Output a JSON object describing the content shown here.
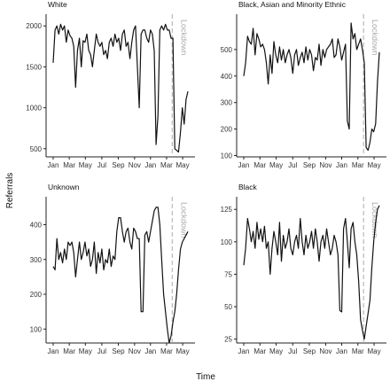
{
  "figure": {
    "ylabel": "Referrals",
    "xlabel": "Time"
  },
  "chart_data": [
    {
      "type": "line",
      "title": "White",
      "x_ticks": [
        "Jan",
        "Mar",
        "May",
        "Jul",
        "Sep",
        "Nov",
        "Jan",
        "Mar",
        "May"
      ],
      "ylim": [
        400,
        2100
      ],
      "y_ticks": [
        500,
        1000,
        1500,
        2000
      ],
      "annotation": "Lockdown",
      "lockdown_week": 63.6,
      "week_range": [
        0,
        72
      ],
      "series": [
        {
          "values": [
            1550,
            1950,
            2000,
            1900,
            2020,
            1950,
            2000,
            1800,
            1950,
            1880,
            1850,
            1750,
            1250,
            1700,
            1850,
            1500,
            1820,
            1800,
            1900,
            1700,
            1650,
            1500,
            1700,
            1900,
            1800,
            1750,
            1800,
            1650,
            1700,
            1600,
            1800,
            1850,
            1750,
            1900,
            1800,
            1850,
            1700,
            1900,
            1950,
            1750,
            1800,
            1600,
            1800,
            1950,
            2000,
            1500,
            1000,
            1900,
            1950,
            1950,
            1850,
            1800,
            1950,
            1900,
            1700,
            550,
            900,
            1950,
            2000,
            1950,
            2020,
            1950,
            1950,
            1850,
            1850,
            500,
            480,
            460,
            700,
            1000,
            800,
            1100,
            1200
          ]
        }
      ]
    },
    {
      "type": "line",
      "title": "Black, Asian and Minority Ethnic",
      "x_ticks": [
        "Jan",
        "Mar",
        "May",
        "Jul",
        "Sep",
        "Nov",
        "Jan",
        "Mar",
        "May"
      ],
      "ylim": [
        95,
        620
      ],
      "y_ticks": [
        100,
        200,
        300,
        400,
        500
      ],
      "annotation": "Lockdown",
      "lockdown_week": 63.6,
      "week_range": [
        0,
        72
      ],
      "series": [
        {
          "values": [
            400,
            450,
            550,
            530,
            520,
            580,
            480,
            560,
            540,
            510,
            520,
            500,
            450,
            370,
            480,
            410,
            530,
            480,
            450,
            510,
            460,
            500,
            450,
            480,
            500,
            470,
            410,
            480,
            500,
            440,
            470,
            490,
            450,
            510,
            460,
            500,
            480,
            420,
            470,
            460,
            520,
            440,
            500,
            470,
            500,
            510,
            520,
            540,
            470,
            480,
            540,
            510,
            460,
            490,
            520,
            230,
            200,
            600,
            540,
            560,
            500,
            520,
            540,
            500,
            450,
            130,
            120,
            150,
            200,
            190,
            220,
            380,
            490
          ]
        }
      ]
    },
    {
      "type": "line",
      "title": "Unknown",
      "x_ticks": [
        "Jan",
        "Mar",
        "May",
        "Jul",
        "Sep",
        "Nov",
        "Jan",
        "Mar",
        "May"
      ],
      "ylim": [
        60,
        470
      ],
      "y_ticks": [
        100,
        200,
        300,
        400
      ],
      "annotation": "Lockdown",
      "lockdown_week": 63.6,
      "week_range": [
        0,
        72
      ],
      "series": [
        {
          "values": [
            280,
            270,
            360,
            300,
            320,
            290,
            330,
            300,
            350,
            340,
            350,
            320,
            250,
            300,
            350,
            300,
            320,
            350,
            310,
            330,
            280,
            300,
            350,
            260,
            320,
            290,
            330,
            270,
            300,
            290,
            330,
            280,
            310,
            300,
            380,
            420,
            420,
            380,
            350,
            380,
            390,
            350,
            330,
            390,
            380,
            360,
            360,
            150,
            150,
            370,
            380,
            350,
            380,
            410,
            440,
            450,
            450,
            400,
            300,
            200,
            150,
            100,
            60,
            80,
            120,
            150,
            200,
            270,
            330,
            350,
            360,
            370,
            380
          ]
        }
      ]
    },
    {
      "type": "line",
      "title": "Black",
      "x_ticks": [
        "Jan",
        "Mar",
        "May",
        "Jul",
        "Sep",
        "Nov",
        "Jan",
        "Mar",
        "May"
      ],
      "ylim": [
        22,
        132
      ],
      "y_ticks": [
        25,
        50,
        75,
        100,
        125
      ],
      "annotation": "Lockdown",
      "lockdown_week": 63.6,
      "week_range": [
        0,
        72
      ],
      "series": [
        {
          "values": [
            82,
            95,
            118,
            110,
            100,
            108,
            95,
            115,
            102,
            110,
            100,
            112,
            95,
            100,
            75,
            95,
            108,
            100,
            90,
            115,
            85,
            105,
            95,
            100,
            110,
            95,
            90,
            100,
            105,
            95,
            118,
            100,
            90,
            105,
            95,
            100,
            108,
            95,
            110,
            100,
            85,
            100,
            105,
            95,
            110,
            100,
            90,
            95,
            105,
            100,
            90,
            47,
            46,
            110,
            118,
            100,
            80,
            110,
            115,
            100,
            90,
            70,
            40,
            32,
            25,
            35,
            45,
            55,
            80,
            100,
            115,
            125,
            128
          ]
        }
      ]
    }
  ]
}
